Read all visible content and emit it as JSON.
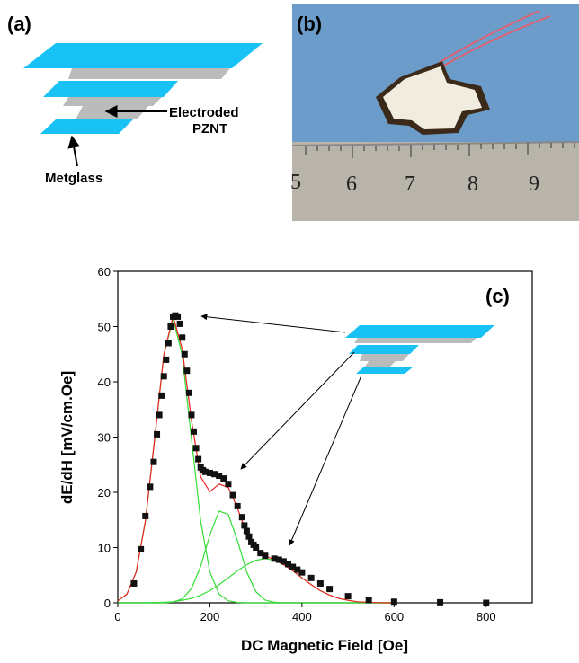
{
  "panel_a": {
    "label": "(a)",
    "electrode_label": [
      "Electroded",
      "PZNT"
    ],
    "metglass_label": "Metglass"
  },
  "panel_b": {
    "label": "(b)",
    "ruler_numbers": [
      "5",
      "6",
      "7",
      "8",
      "9"
    ]
  },
  "chart_data": {
    "type": "scatter",
    "label": "(c)",
    "xlabel": "DC Magnetic Field [Oe]",
    "ylabel": "dE/dH [mV/cm.Oe]",
    "xlim": [
      0,
      900
    ],
    "xticks": [
      0,
      200,
      400,
      600,
      800
    ],
    "ylim": [
      0,
      60
    ],
    "yticks": [
      0,
      10,
      20,
      30,
      40,
      50,
      60
    ],
    "color": "#111111",
    "x": [
      35,
      50,
      60,
      70,
      78,
      85,
      90,
      95,
      100,
      105,
      110,
      115,
      120,
      125,
      130,
      135,
      140,
      145,
      150,
      155,
      160,
      165,
      170,
      175,
      180,
      185,
      190,
      200,
      210,
      220,
      230,
      240,
      250,
      260,
      270,
      275,
      280,
      285,
      290,
      295,
      300,
      310,
      320,
      340,
      350,
      360,
      370,
      380,
      390,
      400,
      420,
      440,
      460,
      500,
      545,
      600,
      700,
      800
    ],
    "values": [
      3.5,
      9.7,
      15.7,
      21,
      25.5,
      30.5,
      34,
      37.5,
      41,
      44,
      47,
      50,
      51.8,
      52,
      51.8,
      50.5,
      48,
      45,
      42,
      38,
      34,
      31,
      28,
      26,
      24.5,
      24,
      23.7,
      23.5,
      23.3,
      23,
      22.5,
      21.5,
      19.5,
      17.5,
      15.5,
      14,
      13,
      12,
      11,
      10.5,
      10,
      9,
      8.5,
      8,
      7.8,
      7.5,
      7,
      6.5,
      6,
      5.5,
      4.5,
      3.5,
      2.5,
      1.2,
      0.5,
      0.2,
      0.1,
      0
    ],
    "fit": {
      "x": [
        0,
        20,
        40,
        60,
        80,
        100,
        120,
        140,
        160,
        180,
        200,
        220,
        240,
        260,
        280,
        300,
        320,
        340,
        360,
        380,
        400,
        420,
        440,
        460,
        480,
        500,
        520,
        540,
        560,
        580,
        600
      ],
      "series": [
        {
          "color": "#33dd33",
          "values": [
            0.35,
            1.6,
            5.6,
            14.8,
            29.6,
            44.8,
            51.5,
            44.8,
            29.6,
            14.8,
            5.6,
            1.6,
            0.35,
            0.06,
            0,
            0,
            0,
            0,
            0,
            0,
            0,
            0,
            0,
            0,
            0,
            0,
            0,
            0,
            0,
            0,
            0
          ]
        },
        {
          "color": "#33dd33",
          "values": [
            0,
            0,
            0,
            0,
            0,
            0,
            0.15,
            0.7,
            2.6,
            6.6,
            12.3,
            16.6,
            16,
            11.2,
            5.6,
            2,
            0.5,
            0.1,
            0,
            0,
            0,
            0,
            0,
            0,
            0,
            0,
            0,
            0,
            0,
            0,
            0
          ]
        },
        {
          "color": "#33dd33",
          "values": [
            0,
            0,
            0,
            0.02,
            0.05,
            0.1,
            0.2,
            0.45,
            0.8,
            1.4,
            2.2,
            3.3,
            4.5,
            5.8,
            6.9,
            7.7,
            8,
            7.7,
            6.9,
            5.8,
            4.5,
            3.3,
            2.2,
            1.4,
            0.8,
            0.45,
            0.2,
            0.1,
            0.05,
            0,
            0
          ]
        },
        {
          "color": "#ee2222",
          "values": [
            0.35,
            1.6,
            5.6,
            14.8,
            29.7,
            44.9,
            51.9,
            45.9,
            33,
            22.8,
            20.1,
            21.5,
            20.9,
            17.1,
            12.5,
            9.7,
            8.5,
            7.8,
            6.9,
            5.8,
            4.5,
            3.3,
            2.2,
            1.4,
            0.8,
            0.45,
            0.2,
            0.1,
            0.05,
            0,
            0
          ]
        }
      ]
    }
  }
}
